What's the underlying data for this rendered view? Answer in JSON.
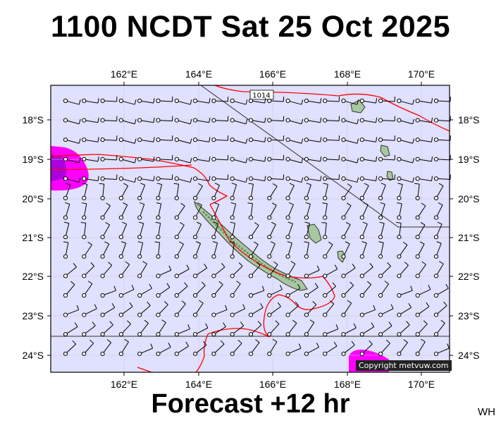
{
  "title": "1100 NCDT Sat 25 Oct 2025",
  "subtitle": "Forecast +12 hr",
  "initials": "WH",
  "copyright": "Copyright metvuw.com",
  "isobar_label": "1014",
  "map": {
    "lon_range": [
      160.0,
      171.0
    ],
    "lat_range": [
      -24.4,
      -17.2
    ],
    "lon_ticks": [
      "162°E",
      "164°E",
      "166°E",
      "168°E",
      "170°E"
    ],
    "lat_ticks": [
      "18°S",
      "19°S",
      "20°S",
      "21°S",
      "22°S",
      "23°S",
      "24°S"
    ],
    "colors": {
      "ocean": "#e0e0ff",
      "land": "#a7c7a0",
      "precip_high": "#ff00ff",
      "precip_core": "#aa00dd",
      "line_red": "#ff0000",
      "barb": "#000000"
    }
  }
}
